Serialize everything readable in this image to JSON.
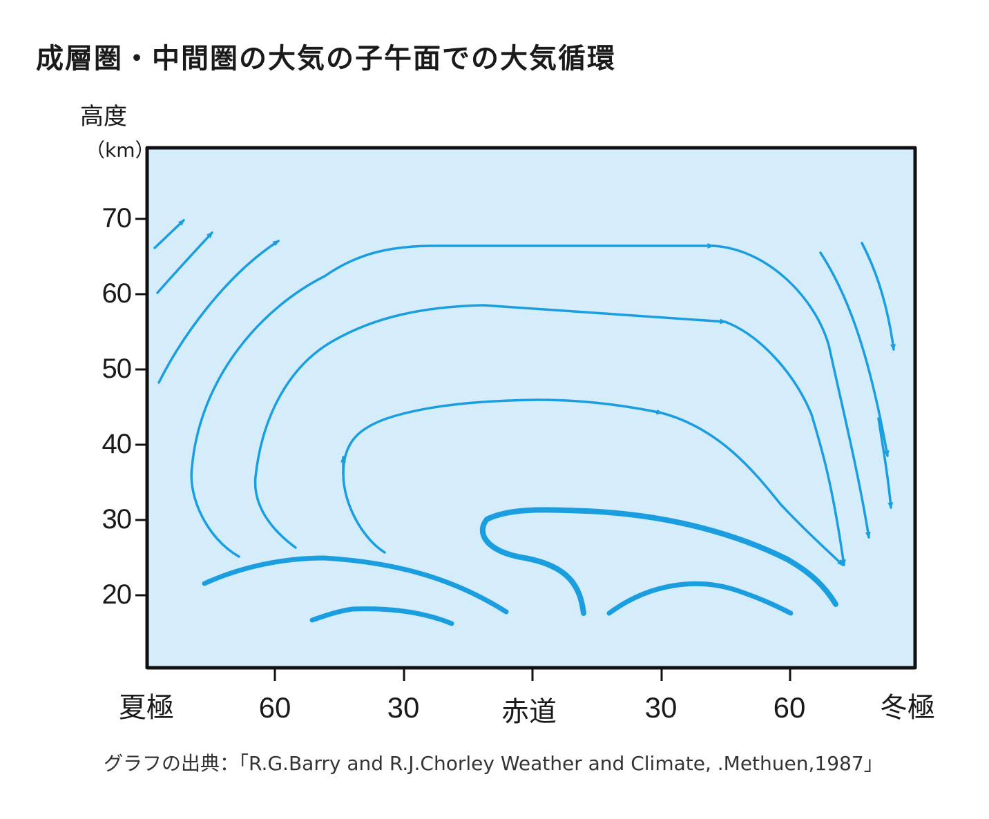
{
  "title": "成層圏・中間圏の大気の子午面での大気循環",
  "y_axis": {
    "label": "高度",
    "unit": "（km）",
    "ticks": [
      "70",
      "60",
      "50",
      "40",
      "30",
      "20"
    ]
  },
  "x_axis": {
    "ticks": [
      "夏極",
      "60",
      "30",
      "赤道",
      "30",
      "60",
      "冬極"
    ]
  },
  "source": "グラフの出典：「R.G.Barry and R.J.Chorley Weather and Climate, .Methuen,1987」",
  "colors": {
    "panel_fill": "#d5ecfa",
    "arrow": "#1a9ee0",
    "frame": "#111111"
  }
}
